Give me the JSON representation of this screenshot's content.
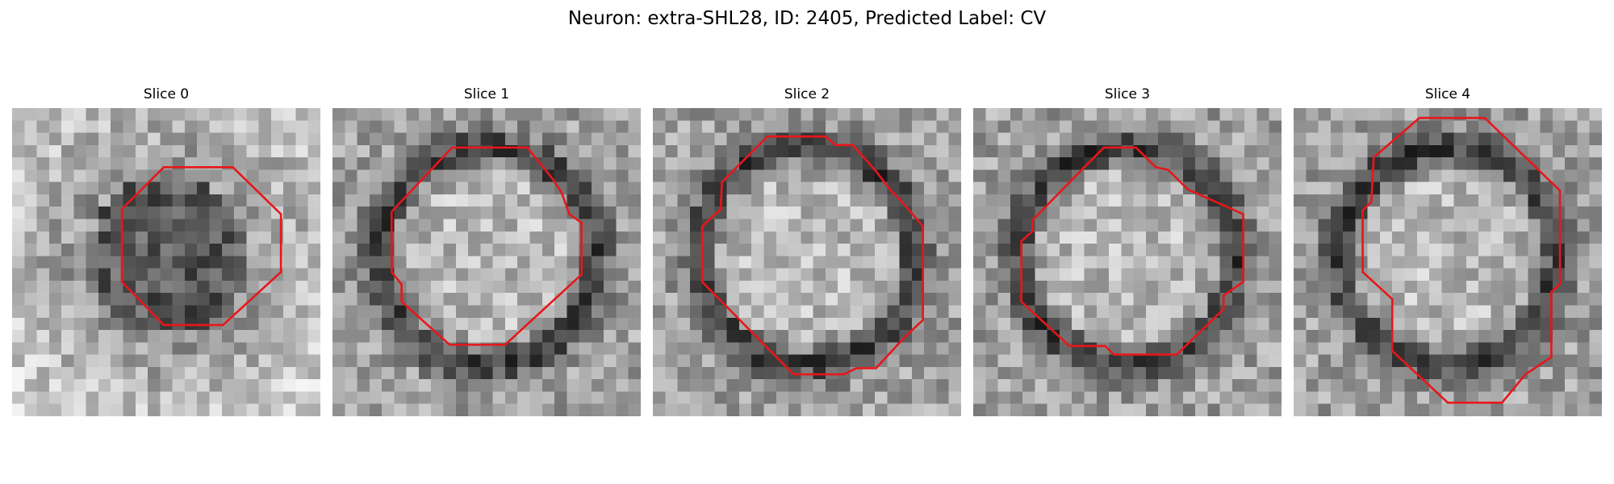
{
  "figure": {
    "title": "Neuron: extra-SHL28, ID: 2405, Predicted Label: CV",
    "colors": {
      "outline": "#e8161a",
      "background": "#ffffff"
    },
    "grid_cells": 25,
    "panels": [
      {
        "title": "Slice 0",
        "core": "dark",
        "seed": 11
      },
      {
        "title": "Slice 1",
        "core": "bright",
        "seed": 23
      },
      {
        "title": "Slice 2",
        "core": "bright",
        "seed": 37
      },
      {
        "title": "Slice 3",
        "core": "bright",
        "seed": 41
      },
      {
        "title": "Slice 4",
        "core": "bright",
        "seed": 59
      }
    ]
  }
}
